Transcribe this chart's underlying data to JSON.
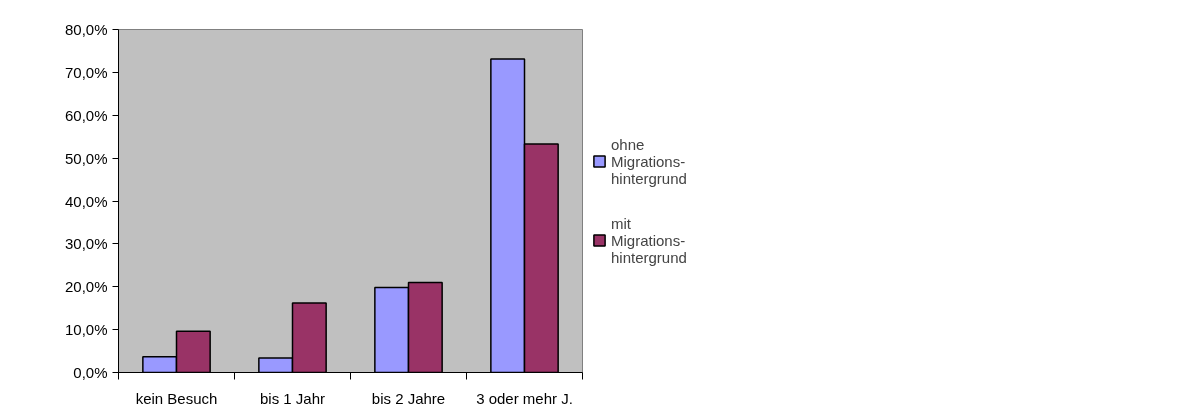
{
  "chart_data": {
    "type": "bar",
    "categories": [
      "kein Besuch",
      "bis 1 Jahr",
      "bis 2 Jahre",
      "3 oder mehr J."
    ],
    "series": [
      {
        "name": "ohne\nMigrations-\nhintergrund",
        "color": "#9999ff",
        "values": [
          3.7,
          3.4,
          19.8,
          73.1
        ]
      },
      {
        "name": "mit\nMigrations-\nhintergrund",
        "color": "#993366",
        "values": [
          9.6,
          16.2,
          21.0,
          53.3
        ]
      }
    ],
    "ylim": [
      0,
      80
    ],
    "yticks": [
      {
        "value": 0,
        "label": "0,0%"
      },
      {
        "value": 10,
        "label": "10,0%"
      },
      {
        "value": 20,
        "label": "20,0%"
      },
      {
        "value": 30,
        "label": "30,0%"
      },
      {
        "value": 40,
        "label": "40,0%"
      },
      {
        "value": 50,
        "label": "50,0%"
      },
      {
        "value": 60,
        "label": "60,0%"
      },
      {
        "value": 70,
        "label": "70,0%"
      },
      {
        "value": 80,
        "label": "80,0%"
      }
    ],
    "grid": false,
    "legend": "right"
  }
}
